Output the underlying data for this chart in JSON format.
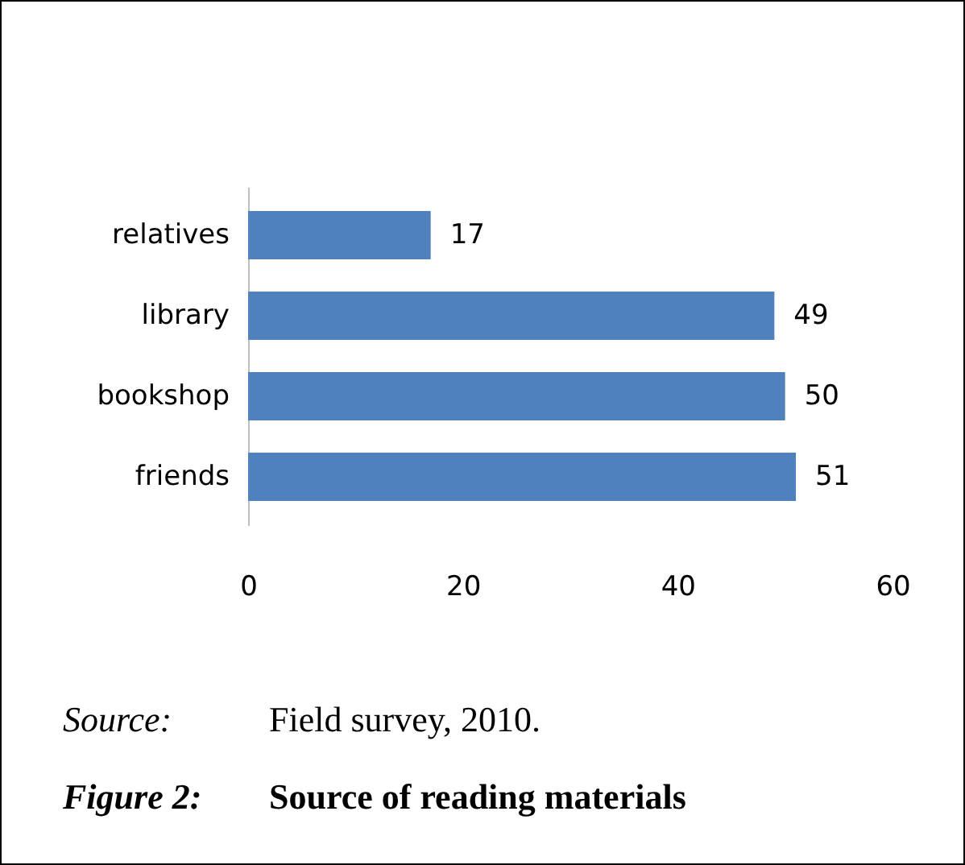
{
  "chart_data": {
    "type": "bar",
    "orientation": "horizontal",
    "title": "Figure 2: Source of reading materials",
    "categories": [
      "relatives",
      "library",
      "bookshop",
      "friends"
    ],
    "values": [
      17,
      49,
      50,
      51
    ],
    "color": "#4f81bd",
    "xlim": [
      0,
      60
    ],
    "xticks": [
      0,
      20,
      40,
      60
    ],
    "grid": false,
    "data_labels": true,
    "annotations": [
      "Source: Field survey, 2010."
    ]
  }
}
